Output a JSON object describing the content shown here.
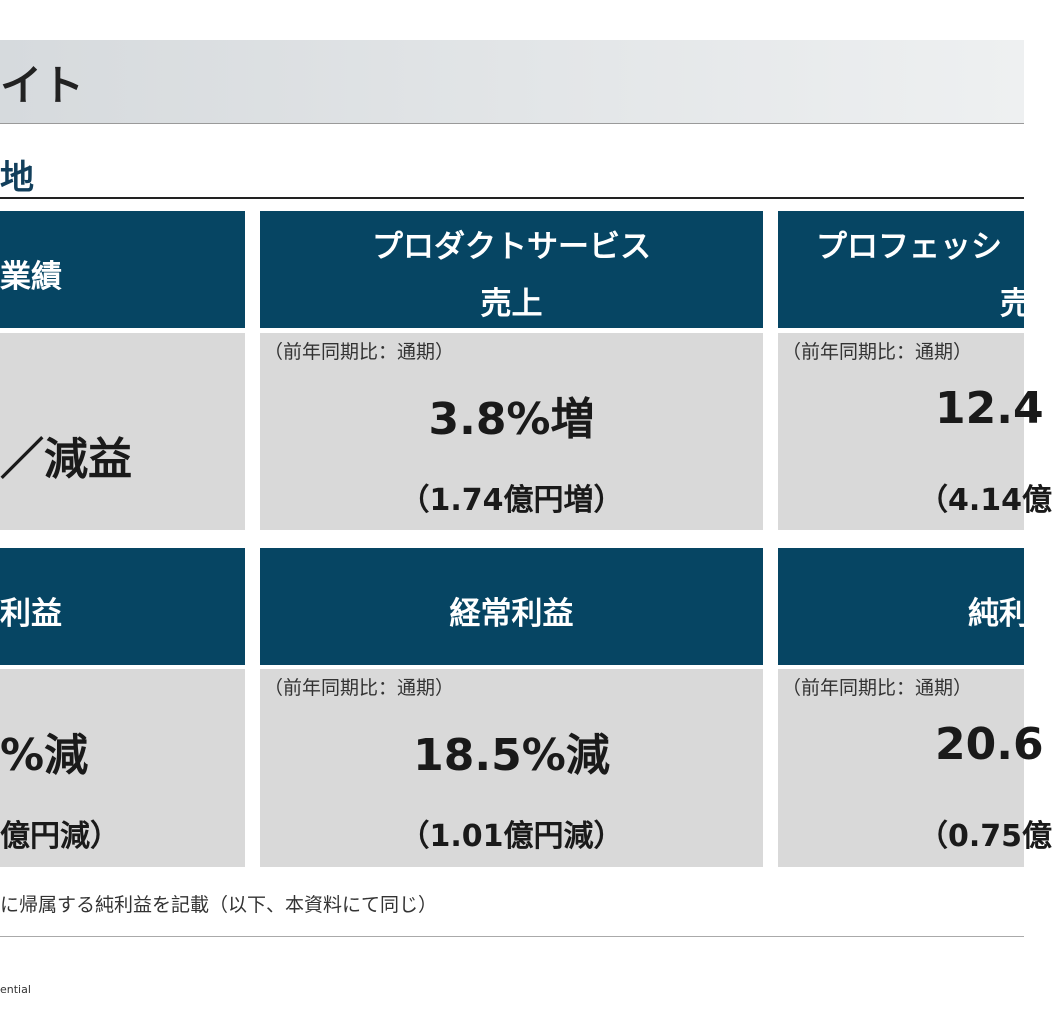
{
  "header": {
    "title": "イト"
  },
  "section": {
    "title": "地"
  },
  "cards": [
    {
      "header": "業績",
      "main": "／減益"
    },
    {
      "header": "プロダクトサービス",
      "header2": "売上",
      "note": "（前年同期比：通期）",
      "main": "3.8%増",
      "sub": "（1.74億円増）"
    },
    {
      "header": "プロフェッシ",
      "header2": "売",
      "note": "（前年同期比：通期）",
      "main": "12.4",
      "sub": "（4.14億"
    },
    {
      "header": "利益",
      "main": "%減",
      "sub": "億円減）"
    },
    {
      "header": "経常利益",
      "note": "（前年同期比：通期）",
      "main": "18.5%減",
      "sub": "（1.01億円減）"
    },
    {
      "header": "純利",
      "note": "（前年同期比：通期）",
      "main": "20.6",
      "sub": "（0.75億"
    }
  ],
  "footnote": "に帰属する純利益を記載（以下、本資料にて同じ）",
  "footer": "ential"
}
